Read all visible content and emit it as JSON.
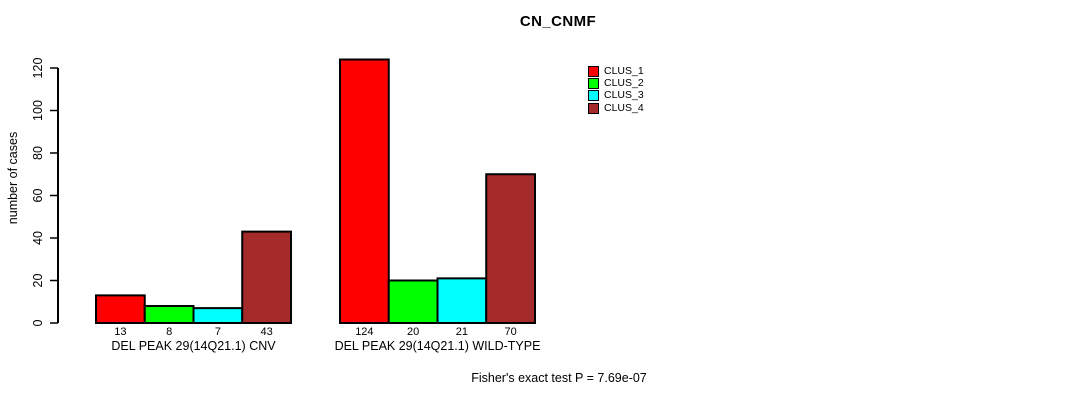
{
  "title": "CN_CNMF",
  "ylabel": "number of cases",
  "footer": "Fisher's exact test P = 7.69e-07",
  "colors": {
    "bar_red": "#FF0000",
    "bar_green": "#00FF00",
    "bar_cyan": "#00FFFF",
    "bar_brown": "#A52A2A",
    "axis": "#000000",
    "background": "#FFFFFF"
  },
  "legend": {
    "items": [
      {
        "label": "CLUS_1",
        "color": "#FF0000"
      },
      {
        "label": "CLUS_2",
        "color": "#00FF00"
      },
      {
        "label": "CLUS_3",
        "color": "#00FFFF"
      },
      {
        "label": "CLUS_4",
        "color": "#A52A2A"
      }
    ]
  },
  "chart_data": {
    "type": "bar",
    "title": "CN_CNMF",
    "xlabel": "",
    "ylabel": "number of cases",
    "ylim": [
      0,
      120
    ],
    "yticks": [
      0,
      20,
      40,
      60,
      80,
      100,
      120
    ],
    "grid": false,
    "legend_position": "top-right",
    "categories": [
      "DEL PEAK 29(14Q21.1) CNV",
      "DEL PEAK 29(14Q21.1) WILD-TYPE"
    ],
    "series": [
      {
        "name": "CLUS_1",
        "color": "#FF0000",
        "values": [
          13,
          124
        ]
      },
      {
        "name": "CLUS_2",
        "color": "#00FF00",
        "values": [
          8,
          20
        ]
      },
      {
        "name": "CLUS_3",
        "color": "#00FFFF",
        "values": [
          7,
          21
        ]
      },
      {
        "name": "CLUS_4",
        "color": "#A52A2A",
        "values": [
          43,
          70
        ]
      }
    ],
    "bar_value_labels": [
      [
        13,
        8,
        7,
        43
      ],
      [
        124,
        20,
        21,
        70
      ]
    ],
    "annotation": "Fisher's exact test P = 7.69e-07"
  }
}
